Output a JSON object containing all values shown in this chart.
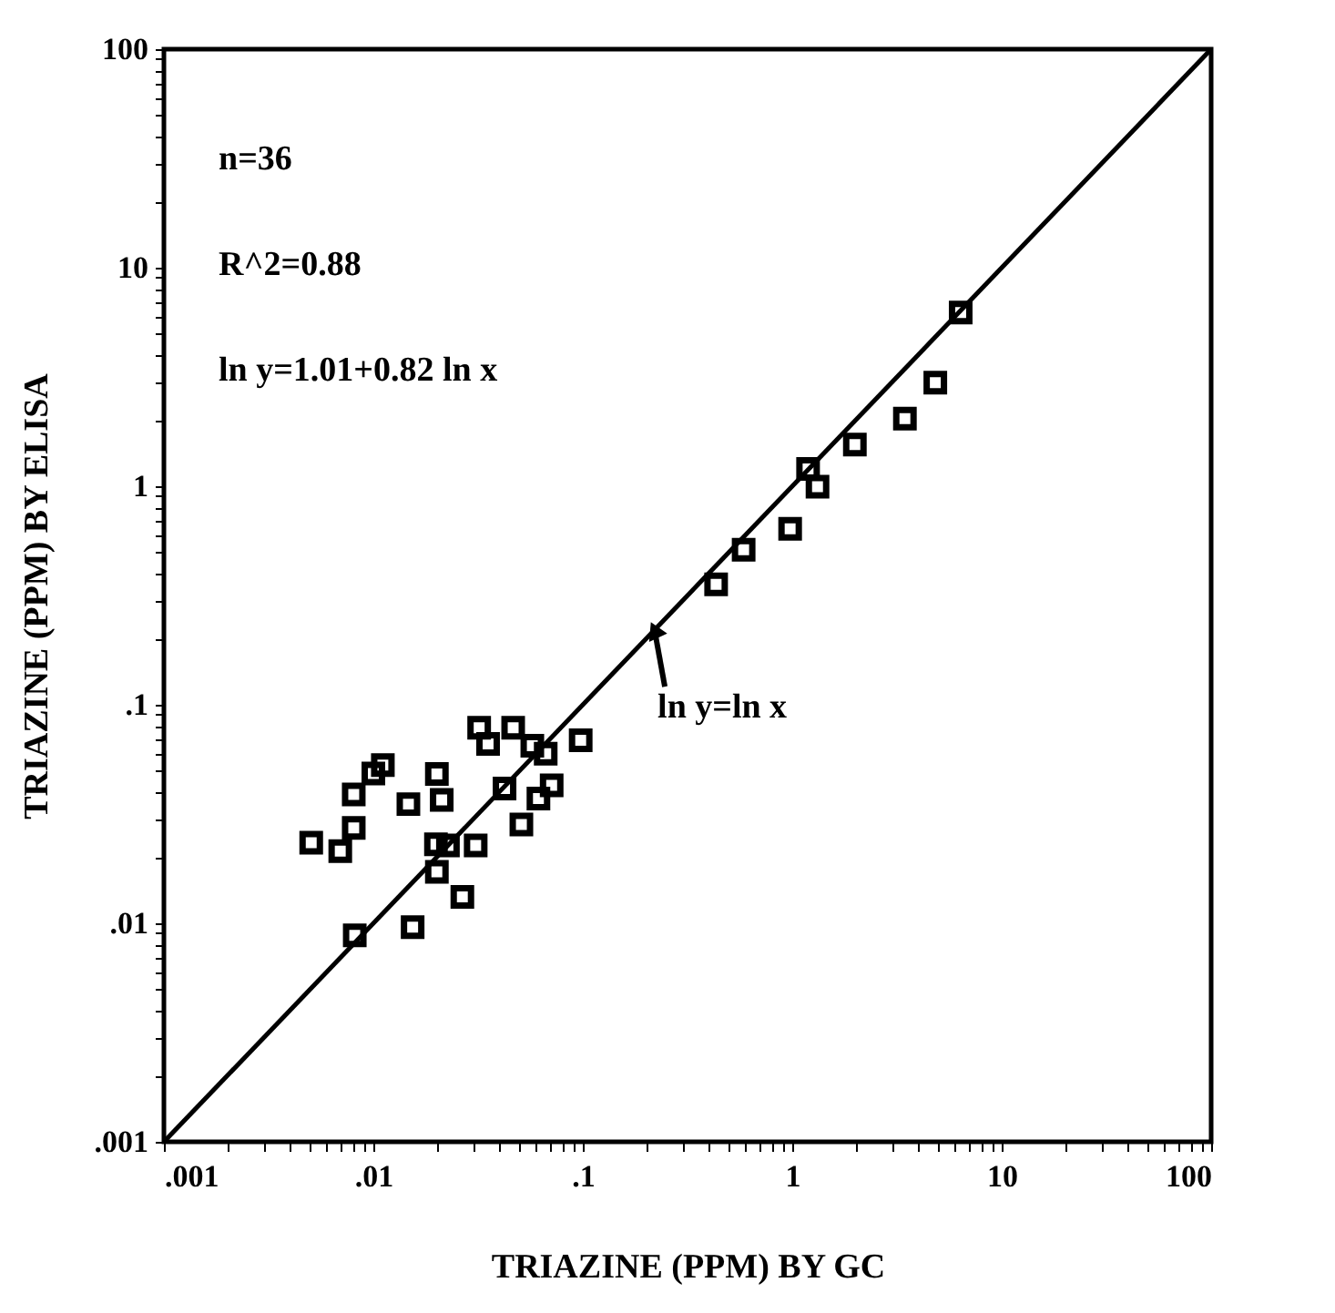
{
  "chart_data": {
    "type": "scatter",
    "xlabel": "TRIAZINE (PPM) BY GC",
    "ylabel": "TRIAZINE (PPM) BY ELISA",
    "log": "xy",
    "grid": false,
    "xlim": [
      0.001,
      100
    ],
    "ylim": [
      0.001,
      100
    ],
    "xticks": [
      {
        "value": 0.001,
        "label": ".001"
      },
      {
        "value": 0.002,
        "label": null
      },
      {
        "value": 0.003,
        "label": null
      },
      {
        "value": 0.004,
        "label": null
      },
      {
        "value": 0.005,
        "label": null
      },
      {
        "value": 0.006,
        "label": null
      },
      {
        "value": 0.007,
        "label": null
      },
      {
        "value": 0.008,
        "label": null
      },
      {
        "value": 0.009,
        "label": null
      },
      {
        "value": 0.01,
        "label": ".01"
      },
      {
        "value": 0.02,
        "label": null
      },
      {
        "value": 0.03,
        "label": null
      },
      {
        "value": 0.04,
        "label": null
      },
      {
        "value": 0.05,
        "label": null
      },
      {
        "value": 0.06,
        "label": null
      },
      {
        "value": 0.07,
        "label": null
      },
      {
        "value": 0.08,
        "label": null
      },
      {
        "value": 0.09,
        "label": null
      },
      {
        "value": 0.1,
        "label": ".1"
      },
      {
        "value": 0.2,
        "label": null
      },
      {
        "value": 0.3,
        "label": null
      },
      {
        "value": 0.4,
        "label": null
      },
      {
        "value": 0.5,
        "label": null
      },
      {
        "value": 0.6,
        "label": null
      },
      {
        "value": 0.7,
        "label": null
      },
      {
        "value": 0.8,
        "label": null
      },
      {
        "value": 0.9,
        "label": null
      },
      1,
      {
        "value": 2,
        "label": null
      },
      {
        "value": 3,
        "label": null
      },
      {
        "value": 4,
        "label": null
      },
      {
        "value": 5,
        "label": null
      },
      {
        "value": 6,
        "label": null
      },
      {
        "value": 7,
        "label": null
      },
      {
        "value": 8,
        "label": null
      },
      {
        "value": 9,
        "label": null
      },
      10,
      {
        "value": 20,
        "label": null
      },
      {
        "value": 30,
        "label": null
      },
      {
        "value": 40,
        "label": null
      },
      {
        "value": 50,
        "label": null
      },
      {
        "value": 60,
        "label": null
      },
      {
        "value": 70,
        "label": null
      },
      {
        "value": 80,
        "label": null
      },
      {
        "value": 90,
        "label": null
      },
      100
    ],
    "yticks": [
      {
        "value": 0.001,
        "label": ".001"
      },
      {
        "value": 0.002,
        "label": null
      },
      {
        "value": 0.003,
        "label": null
      },
      {
        "value": 0.004,
        "label": null
      },
      {
        "value": 0.005,
        "label": null
      },
      {
        "value": 0.006,
        "label": null
      },
      {
        "value": 0.007,
        "label": null
      },
      {
        "value": 0.008,
        "label": null
      },
      {
        "value": 0.009,
        "label": null
      },
      {
        "value": 0.01,
        "label": ".01"
      },
      {
        "value": 0.02,
        "label": null
      },
      {
        "value": 0.03,
        "label": null
      },
      {
        "value": 0.04,
        "label": null
      },
      {
        "value": 0.05,
        "label": null
      },
      {
        "value": 0.06,
        "label": null
      },
      {
        "value": 0.07,
        "label": null
      },
      {
        "value": 0.08,
        "label": null
      },
      {
        "value": 0.09,
        "label": null
      },
      {
        "value": 0.1,
        "label": ".1"
      },
      {
        "value": 0.2,
        "label": null
      },
      {
        "value": 0.3,
        "label": null
      },
      {
        "value": 0.4,
        "label": null
      },
      {
        "value": 0.5,
        "label": null
      },
      {
        "value": 0.6,
        "label": null
      },
      {
        "value": 0.7,
        "label": null
      },
      {
        "value": 0.8,
        "label": null
      },
      {
        "value": 0.9,
        "label": null
      },
      1,
      {
        "value": 2,
        "label": null
      },
      {
        "value": 3,
        "label": null
      },
      {
        "value": 4,
        "label": null
      },
      {
        "value": 5,
        "label": null
      },
      {
        "value": 6,
        "label": null
      },
      {
        "value": 7,
        "label": null
      },
      {
        "value": 8,
        "label": null
      },
      {
        "value": 9,
        "label": null
      },
      10,
      {
        "value": 20,
        "label": null
      },
      {
        "value": 30,
        "label": null
      },
      {
        "value": 40,
        "label": null
      },
      {
        "value": 50,
        "label": null
      },
      {
        "value": 60,
        "label": null
      },
      {
        "value": 70,
        "label": null
      },
      {
        "value": 80,
        "label": null
      },
      {
        "value": 90,
        "label": null
      },
      100
    ],
    "series": [
      {
        "type": "line",
        "color": "#000000",
        "marker": "none",
        "line_style": "solid",
        "x": [
          0.001,
          100
        ],
        "values": [
          0.001,
          100
        ]
      },
      {
        "marker": "square",
        "color": "#000000",
        "x": [
          0.00505,
          0.00695,
          0.00806,
          0.00806,
          0.01,
          0.0111,
          0.0147,
          0.0201,
          0.0212,
          0.0199,
          0.0227,
          0.0201,
          0.00815,
          0.0154,
          0.0266,
          0.0308,
          0.032,
          0.0353,
          0.0465,
          0.0423,
          0.0509,
          0.0574,
          0.0665,
          0.0614,
          0.071,
          0.0977,
          0.433,
          0.586,
          0.977,
          1.19,
          1.32,
          1.99,
          3.45,
          4.82,
          6.37
        ],
        "values": [
          0.0234,
          0.0214,
          0.0273,
          0.0389,
          0.0485,
          0.053,
          0.0351,
          0.0482,
          0.0367,
          0.023,
          0.0227,
          0.0172,
          0.0088,
          0.0096,
          0.0132,
          0.0227,
          0.0785,
          0.0662,
          0.0785,
          0.0414,
          0.0283,
          0.065,
          0.0597,
          0.0372,
          0.0428,
          0.0688,
          0.356,
          0.512,
          0.638,
          1.2,
          0.995,
          1.55,
          2.04,
          2.98,
          6.24
        ]
      }
    ],
    "annotations": [
      "n=36",
      "R^2=0.88",
      "ln y=1.01+0.82 ln x",
      {
        "text": "ln y=ln x",
        "x": 0.22,
        "y": 0.22
      }
    ]
  }
}
